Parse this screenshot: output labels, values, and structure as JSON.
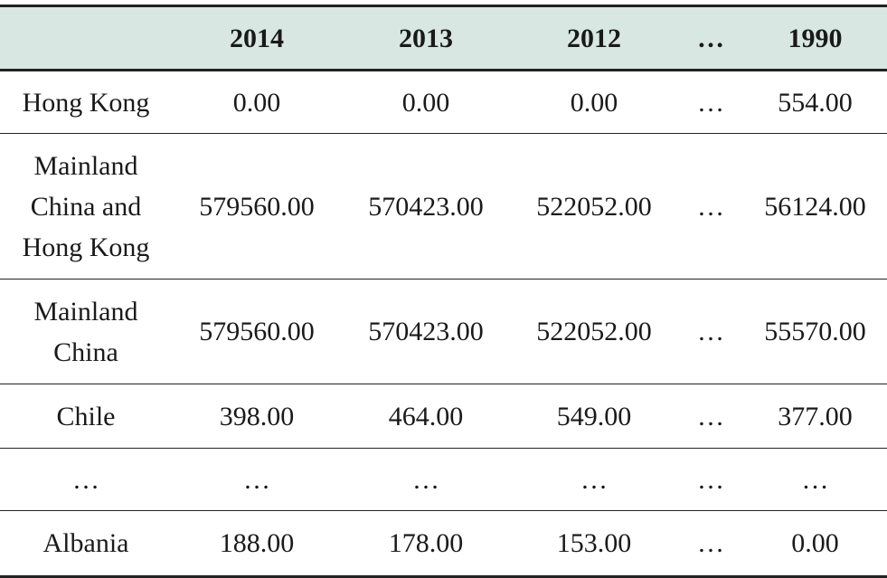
{
  "table": {
    "header": [
      "2014",
      "2013",
      "2012",
      "…",
      "1990"
    ],
    "rows": [
      [
        "Hong Kong",
        "0.00",
        "0.00",
        "0.00",
        "…",
        "554.00"
      ],
      [
        "Mainland China and Hong Kong",
        "579560.00",
        "570423.00",
        "522052.00",
        "…",
        "56124.00"
      ],
      [
        "Mainland China",
        "579560.00",
        "570423.00",
        "522052.00",
        "…",
        "55570.00"
      ],
      [
        "Chile",
        "398.00",
        "464.00",
        "549.00",
        "…",
        "377.00"
      ],
      [
        "…",
        "…",
        "…",
        "…",
        "…",
        "…"
      ],
      [
        "Albania",
        "188.00",
        "178.00",
        "153.00",
        "…",
        "0.00"
      ]
    ]
  }
}
